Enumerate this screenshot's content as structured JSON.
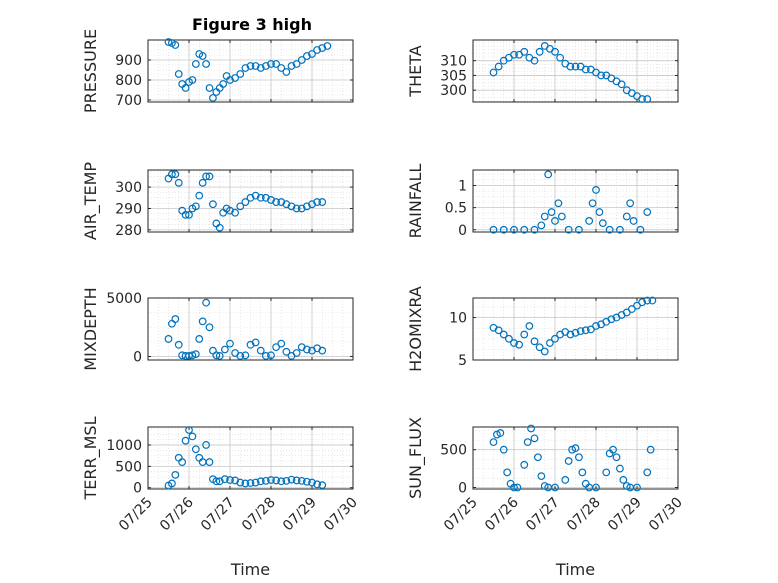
{
  "figure_title": "Figure 3 high",
  "marker_color": "#0072BD",
  "chart_data": [
    {
      "id": "pressure",
      "type": "scatter",
      "marker": "circle",
      "title": "Figure 3 high",
      "ylabel": "PRESSURE",
      "xlim": [
        "07/25",
        "07/30"
      ],
      "ylim": [
        690,
        1000
      ],
      "yticks": [
        700,
        800,
        900
      ],
      "yticklabels": [
        "700",
        "800",
        "900"
      ],
      "xticks": [
        "07/25",
        "07/26",
        "07/27",
        "07/28",
        "07/29",
        "07/30"
      ],
      "show_xticklabels": false,
      "xlabel": "",
      "grid": true,
      "x": [
        "07/25 12:00",
        "07/25 14:00",
        "07/25 16:00",
        "07/25 18:00",
        "07/25 20:00",
        "07/25 22:00",
        "07/26 00:00",
        "07/26 02:00",
        "07/26 04:00",
        "07/26 06:00",
        "07/26 08:00",
        "07/26 10:00",
        "07/26 12:00",
        "07/26 14:00",
        "07/26 16:00",
        "07/26 18:00",
        "07/26 20:00",
        "07/26 22:00",
        "07/27 00:00",
        "07/27 03:00",
        "07/27 06:00",
        "07/27 09:00",
        "07/27 12:00",
        "07/27 15:00",
        "07/27 18:00",
        "07/27 21:00",
        "07/28 00:00",
        "07/28 03:00",
        "07/28 06:00",
        "07/28 09:00",
        "07/28 12:00",
        "07/28 15:00",
        "07/28 18:00",
        "07/28 21:00",
        "07/29 00:00",
        "07/29 03:00",
        "07/29 06:00",
        "07/29 09:00"
      ],
      "y": [
        990,
        985,
        975,
        830,
        780,
        760,
        790,
        800,
        880,
        930,
        920,
        880,
        760,
        710,
        740,
        760,
        780,
        820,
        800,
        810,
        830,
        860,
        870,
        870,
        860,
        870,
        880,
        880,
        860,
        840,
        870,
        880,
        900,
        920,
        930,
        950,
        960,
        970
      ]
    },
    {
      "id": "theta",
      "type": "scatter",
      "marker": "circle",
      "ylabel": "THETA",
      "xlim": [
        "07/25",
        "07/30"
      ],
      "ylim": [
        296,
        317
      ],
      "yticks": [
        300,
        305,
        310
      ],
      "yticklabels": [
        "300",
        "305",
        "310"
      ],
      "xticks": [
        "07/25",
        "07/26",
        "07/27",
        "07/28",
        "07/29",
        "07/30"
      ],
      "show_xticklabels": false,
      "xlabel": "",
      "grid": true,
      "x": [
        "07/25 12:00",
        "07/25 15:00",
        "07/25 18:00",
        "07/25 21:00",
        "07/26 00:00",
        "07/26 03:00",
        "07/26 06:00",
        "07/26 09:00",
        "07/26 12:00",
        "07/26 15:00",
        "07/26 18:00",
        "07/26 21:00",
        "07/27 00:00",
        "07/27 03:00",
        "07/27 06:00",
        "07/27 09:00",
        "07/27 12:00",
        "07/27 15:00",
        "07/27 18:00",
        "07/27 21:00",
        "07/28 00:00",
        "07/28 03:00",
        "07/28 06:00",
        "07/28 09:00",
        "07/28 12:00",
        "07/28 15:00",
        "07/28 18:00",
        "07/28 21:00",
        "07/29 00:00",
        "07/29 03:00",
        "07/29 06:00"
      ],
      "y": [
        306,
        308,
        310,
        311,
        312,
        312,
        313,
        311,
        310,
        313,
        315,
        314,
        313,
        311,
        309,
        308,
        308,
        308,
        307,
        307,
        306,
        305,
        305,
        304,
        303,
        302,
        300,
        299,
        298,
        297,
        297
      ]
    },
    {
      "id": "air_temp",
      "type": "scatter",
      "marker": "circle",
      "ylabel": "AIR_TEMP",
      "xlim": [
        "07/25",
        "07/30"
      ],
      "ylim": [
        279,
        308
      ],
      "yticks": [
        280,
        290,
        300
      ],
      "yticklabels": [
        "280",
        "290",
        "300"
      ],
      "xticks": [
        "07/25",
        "07/26",
        "07/27",
        "07/28",
        "07/29",
        "07/30"
      ],
      "show_xticklabels": false,
      "xlabel": "",
      "grid": true,
      "x": [
        "07/25 12:00",
        "07/25 14:00",
        "07/25 16:00",
        "07/25 18:00",
        "07/25 20:00",
        "07/25 22:00",
        "07/26 00:00",
        "07/26 02:00",
        "07/26 04:00",
        "07/26 06:00",
        "07/26 08:00",
        "07/26 10:00",
        "07/26 12:00",
        "07/26 14:00",
        "07/26 16:00",
        "07/26 18:00",
        "07/26 20:00",
        "07/26 22:00",
        "07/27 00:00",
        "07/27 03:00",
        "07/27 06:00",
        "07/27 09:00",
        "07/27 12:00",
        "07/27 15:00",
        "07/27 18:00",
        "07/27 21:00",
        "07/28 00:00",
        "07/28 03:00",
        "07/28 06:00",
        "07/28 09:00",
        "07/28 12:00",
        "07/28 15:00",
        "07/28 18:00",
        "07/28 21:00",
        "07/29 00:00",
        "07/29 03:00",
        "07/29 06:00"
      ],
      "y": [
        304,
        306,
        306,
        302,
        289,
        287,
        287,
        290,
        291,
        296,
        302,
        305,
        305,
        292,
        283,
        281,
        288,
        290,
        289,
        288,
        291,
        293,
        295,
        296,
        295,
        295,
        294,
        293,
        293,
        292,
        291,
        290,
        290,
        291,
        292,
        293,
        293
      ]
    },
    {
      "id": "rainfall",
      "type": "scatter",
      "marker": "circle",
      "ylabel": "RAINFALL",
      "xlim": [
        "07/25",
        "07/30"
      ],
      "ylim": [
        -0.05,
        1.35
      ],
      "yticks": [
        0,
        0.5,
        1
      ],
      "yticklabels": [
        "0",
        "0.5",
        "1"
      ],
      "xticks": [
        "07/25",
        "07/26",
        "07/27",
        "07/28",
        "07/29",
        "07/30"
      ],
      "show_xticklabels": false,
      "xlabel": "",
      "grid": true,
      "x": [
        "07/25 12:00",
        "07/25 18:00",
        "07/26 00:00",
        "07/26 06:00",
        "07/26 12:00",
        "07/26 16:00",
        "07/26 18:00",
        "07/26 20:00",
        "07/26 22:00",
        "07/27 00:00",
        "07/27 02:00",
        "07/27 04:00",
        "07/27 08:00",
        "07/27 14:00",
        "07/27 20:00",
        "07/27 22:00",
        "07/28 00:00",
        "07/28 02:00",
        "07/28 04:00",
        "07/28 08:00",
        "07/28 14:00",
        "07/28 18:00",
        "07/28 20:00",
        "07/28 22:00",
        "07/29 02:00",
        "07/29 06:00"
      ],
      "y": [
        0,
        0,
        0,
        0,
        0,
        0.1,
        0.3,
        1.25,
        0.4,
        0.2,
        0.6,
        0.3,
        0,
        0,
        0.2,
        0.6,
        0.9,
        0.4,
        0.15,
        0,
        0,
        0.3,
        0.6,
        0.2,
        0,
        0.4
      ]
    },
    {
      "id": "mixdepth",
      "type": "scatter",
      "marker": "circle",
      "ylabel": "MIXDEPTH",
      "xlim": [
        "07/25",
        "07/30"
      ],
      "ylim": [
        -300,
        5000
      ],
      "yticks": [
        0,
        5000
      ],
      "yticklabels": [
        "0",
        "5000"
      ],
      "xticks": [
        "07/25",
        "07/26",
        "07/27",
        "07/28",
        "07/29",
        "07/30"
      ],
      "show_xticklabels": false,
      "xlabel": "",
      "grid": true,
      "x": [
        "07/25 12:00",
        "07/25 14:00",
        "07/25 16:00",
        "07/25 18:00",
        "07/25 20:00",
        "07/25 22:00",
        "07/26 00:00",
        "07/26 02:00",
        "07/26 04:00",
        "07/26 06:00",
        "07/26 08:00",
        "07/26 10:00",
        "07/26 12:00",
        "07/26 14:00",
        "07/26 16:00",
        "07/26 18:00",
        "07/26 21:00",
        "07/27 00:00",
        "07/27 03:00",
        "07/27 06:00",
        "07/27 09:00",
        "07/27 12:00",
        "07/27 15:00",
        "07/27 18:00",
        "07/27 21:00",
        "07/28 00:00",
        "07/28 03:00",
        "07/28 06:00",
        "07/28 09:00",
        "07/28 12:00",
        "07/28 15:00",
        "07/28 18:00",
        "07/28 21:00",
        "07/29 00:00",
        "07/29 03:00",
        "07/29 06:00"
      ],
      "y": [
        1500,
        2800,
        3200,
        1000,
        100,
        50,
        50,
        100,
        200,
        1500,
        3000,
        4600,
        2500,
        500,
        100,
        50,
        600,
        1100,
        300,
        50,
        100,
        1000,
        1200,
        500,
        50,
        100,
        800,
        1100,
        400,
        50,
        300,
        800,
        600,
        500,
        700,
        500
      ]
    },
    {
      "id": "h2omixra",
      "type": "scatter",
      "marker": "circle",
      "ylabel": "H2OMIXRA",
      "xlim": [
        "07/25",
        "07/30"
      ],
      "ylim": [
        5,
        12.3
      ],
      "yticks": [
        5,
        10
      ],
      "yticklabels": [
        "5",
        "10"
      ],
      "xticks": [
        "07/25",
        "07/26",
        "07/27",
        "07/28",
        "07/29",
        "07/30"
      ],
      "show_xticklabels": false,
      "xlabel": "",
      "grid": true,
      "x": [
        "07/25 12:00",
        "07/25 15:00",
        "07/25 18:00",
        "07/25 21:00",
        "07/26 00:00",
        "07/26 03:00",
        "07/26 06:00",
        "07/26 09:00",
        "07/26 12:00",
        "07/26 15:00",
        "07/26 18:00",
        "07/26 21:00",
        "07/27 00:00",
        "07/27 03:00",
        "07/27 06:00",
        "07/27 09:00",
        "07/27 12:00",
        "07/27 15:00",
        "07/27 18:00",
        "07/27 21:00",
        "07/28 00:00",
        "07/28 03:00",
        "07/28 06:00",
        "07/28 09:00",
        "07/28 12:00",
        "07/28 15:00",
        "07/28 18:00",
        "07/28 21:00",
        "07/29 00:00",
        "07/29 03:00",
        "07/29 06:00",
        "07/29 09:00"
      ],
      "y": [
        8.8,
        8.5,
        8,
        7.5,
        7,
        6.8,
        8,
        9,
        7.2,
        6.5,
        6,
        7,
        7.5,
        8,
        8.3,
        8,
        8.2,
        8.4,
        8.5,
        8.6,
        9,
        9.2,
        9.5,
        9.8,
        10,
        10.3,
        10.6,
        11,
        11.4,
        11.8,
        12,
        12
      ]
    },
    {
      "id": "terr_msl",
      "type": "scatter",
      "marker": "circle",
      "ylabel": "TERR_MSL",
      "xlim": [
        "07/25",
        "07/30"
      ],
      "ylim": [
        -30,
        1420
      ],
      "yticks": [
        0,
        500,
        1000
      ],
      "yticklabels": [
        "0",
        "500",
        "1000"
      ],
      "xticks": [
        "07/25",
        "07/26",
        "07/27",
        "07/28",
        "07/29",
        "07/30"
      ],
      "xticklabels": [
        "07/25",
        "07/26",
        "07/27",
        "07/28",
        "07/29",
        "07/30"
      ],
      "show_xticklabels": true,
      "xlabel": "Time",
      "grid": true,
      "x": [
        "07/25 12:00",
        "07/25 14:00",
        "07/25 16:00",
        "07/25 18:00",
        "07/25 20:00",
        "07/25 22:00",
        "07/26 00:00",
        "07/26 02:00",
        "07/26 04:00",
        "07/26 06:00",
        "07/26 08:00",
        "07/26 10:00",
        "07/26 12:00",
        "07/26 14:00",
        "07/26 16:00",
        "07/26 18:00",
        "07/26 21:00",
        "07/27 00:00",
        "07/27 03:00",
        "07/27 06:00",
        "07/27 09:00",
        "07/27 12:00",
        "07/27 15:00",
        "07/27 18:00",
        "07/27 21:00",
        "07/28 00:00",
        "07/28 03:00",
        "07/28 06:00",
        "07/28 09:00",
        "07/28 12:00",
        "07/28 15:00",
        "07/28 18:00",
        "07/28 21:00",
        "07/29 00:00",
        "07/29 03:00",
        "07/29 06:00"
      ],
      "y": [
        50,
        100,
        300,
        700,
        600,
        1100,
        1350,
        1200,
        900,
        700,
        600,
        1000,
        600,
        200,
        150,
        150,
        200,
        180,
        170,
        120,
        100,
        110,
        120,
        150,
        160,
        180,
        170,
        150,
        160,
        190,
        170,
        160,
        140,
        120,
        80,
        60
      ]
    },
    {
      "id": "sun_flux",
      "type": "scatter",
      "marker": "circle",
      "ylabel": "SUN_FLUX",
      "xlim": [
        "07/25",
        "07/30"
      ],
      "ylim": [
        -20,
        800
      ],
      "yticks": [
        0,
        500
      ],
      "yticklabels": [
        "0",
        "500"
      ],
      "xticks": [
        "07/25",
        "07/26",
        "07/27",
        "07/28",
        "07/29",
        "07/30"
      ],
      "xticklabels": [
        "07/25",
        "07/26",
        "07/27",
        "07/28",
        "07/29",
        "07/30"
      ],
      "show_xticklabels": true,
      "xlabel": "Time",
      "grid": true,
      "x": [
        "07/25 12:00",
        "07/25 14:00",
        "07/25 16:00",
        "07/25 18:00",
        "07/25 20:00",
        "07/25 22:00",
        "07/26 00:00",
        "07/26 02:00",
        "07/26 06:00",
        "07/26 08:00",
        "07/26 10:00",
        "07/26 12:00",
        "07/26 14:00",
        "07/26 16:00",
        "07/26 18:00",
        "07/26 20:00",
        "07/27 00:00",
        "07/27 06:00",
        "07/27 08:00",
        "07/27 10:00",
        "07/27 12:00",
        "07/27 14:00",
        "07/27 16:00",
        "07/27 18:00",
        "07/27 20:00",
        "07/28 00:00",
        "07/28 06:00",
        "07/28 08:00",
        "07/28 10:00",
        "07/28 12:00",
        "07/28 14:00",
        "07/28 16:00",
        "07/28 18:00",
        "07/28 20:00",
        "07/29 00:00",
        "07/29 06:00",
        "07/29 08:00"
      ],
      "y": [
        600,
        700,
        720,
        500,
        200,
        50,
        0,
        0,
        300,
        600,
        780,
        650,
        400,
        150,
        20,
        0,
        0,
        100,
        350,
        500,
        520,
        400,
        200,
        50,
        0,
        0,
        200,
        450,
        500,
        400,
        250,
        100,
        20,
        0,
        0,
        200,
        500
      ]
    }
  ]
}
